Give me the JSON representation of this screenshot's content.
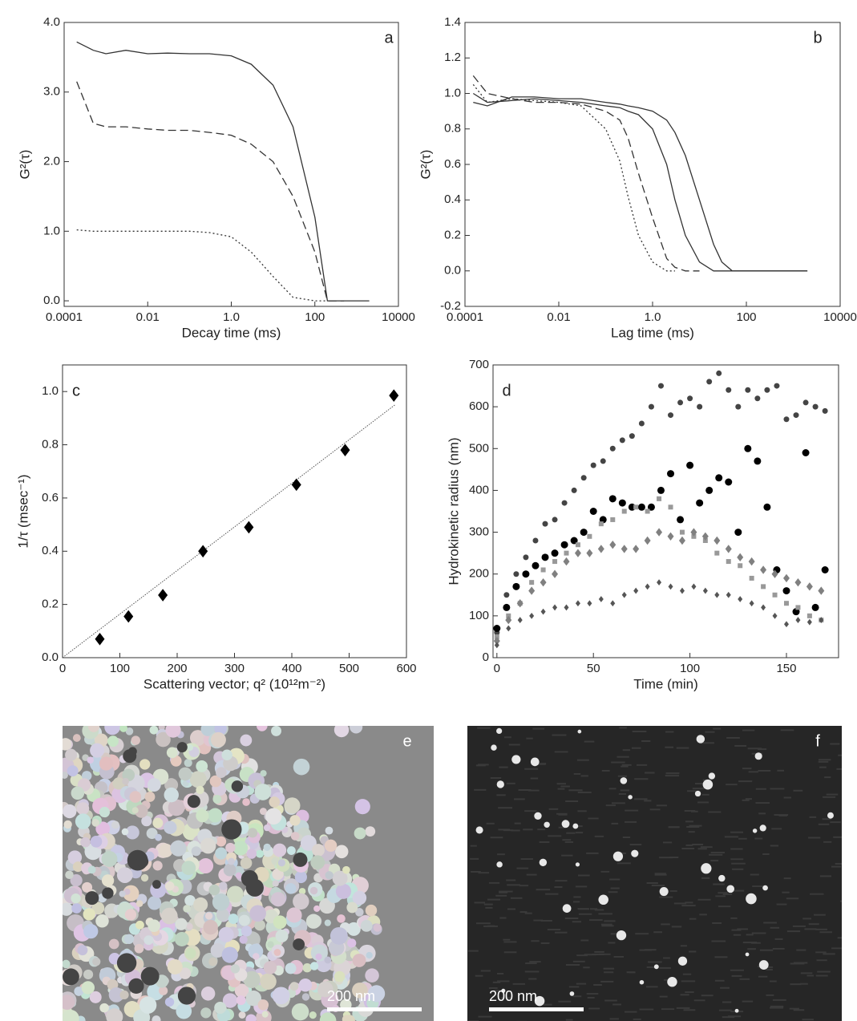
{
  "chart_data": [
    {
      "type": "line",
      "panel_label": "a",
      "x_label": "Decay time (ms)",
      "y_label": "G²(τ)",
      "xscale": "log",
      "xlim": [
        0.0001,
        10000
      ],
      "xticks": [
        0.0001,
        0.01,
        {
          "value": 1,
          "label": "1.0"
        },
        100,
        10000
      ],
      "ylim": [
        -0.08,
        4.0
      ],
      "yticks": [
        {
          "value": 0,
          "label": "0.0"
        },
        {
          "value": 1,
          "label": "1.0"
        },
        {
          "value": 2,
          "label": "2.0"
        },
        {
          "value": 3,
          "label": "3.0"
        },
        {
          "value": 4,
          "label": "4.0"
        }
      ],
      "x": [
        0.0002,
        0.0005,
        0.001,
        0.003,
        0.01,
        0.03,
        0.1,
        0.3,
        1,
        3,
        10,
        30,
        100,
        200,
        500,
        2000
      ],
      "series": [
        {
          "color": "#333333",
          "dash": "solid",
          "values": [
            3.72,
            3.6,
            3.55,
            3.6,
            3.55,
            3.56,
            3.55,
            3.55,
            3.52,
            3.4,
            3.1,
            2.5,
            1.2,
            0.0,
            0.0,
            0.0
          ]
        },
        {
          "color": "#333333",
          "dash": "dashed",
          "values": [
            3.15,
            2.55,
            2.5,
            2.5,
            2.47,
            2.45,
            2.45,
            2.42,
            2.38,
            2.25,
            2.0,
            1.5,
            0.7,
            0.0,
            0.0,
            null
          ]
        },
        {
          "color": "#333333",
          "dash": "dotted",
          "values": [
            1.02,
            1.0,
            1.0,
            1.0,
            1.0,
            1.0,
            1.0,
            0.98,
            0.92,
            0.7,
            0.35,
            0.05,
            0.0,
            0.0,
            null,
            null
          ]
        }
      ]
    },
    {
      "type": "line",
      "panel_label": "b",
      "x_label": "Lag time (ms)",
      "y_label": "G²(τ)",
      "xscale": "log",
      "xlim": [
        0.0001,
        10000
      ],
      "xticks": [
        0.0001,
        0.01,
        {
          "value": 1,
          "label": "1.0"
        },
        100,
        10000
      ],
      "ylim": [
        -0.2,
        1.4
      ],
      "yticks": [
        -0.2,
        {
          "value": 0,
          "label": "0.0"
        },
        0.2,
        0.4,
        0.6,
        0.8,
        {
          "value": 1,
          "label": "1.0"
        },
        1.2,
        1.4
      ],
      "x": [
        0.00015,
        0.0003,
        0.001,
        0.003,
        0.01,
        0.03,
        0.1,
        0.2,
        0.3,
        0.5,
        1,
        2,
        3,
        5,
        10,
        20,
        30,
        50,
        100,
        300,
        2000
      ],
      "series": [
        {
          "color": "#333333",
          "dash": "dotted",
          "values": [
            1.05,
            0.95,
            0.97,
            0.96,
            0.95,
            0.93,
            0.8,
            0.62,
            0.42,
            0.2,
            0.05,
            0.0,
            0.0,
            null,
            null,
            null,
            null,
            null,
            null,
            null,
            null
          ]
        },
        {
          "color": "#333333",
          "dash": "dashed",
          "values": [
            1.1,
            1.0,
            0.97,
            0.95,
            0.95,
            0.94,
            0.9,
            0.85,
            0.75,
            0.55,
            0.3,
            0.07,
            0.02,
            0.0,
            0.0,
            null,
            null,
            null,
            null,
            null,
            null
          ]
        },
        {
          "color": "#333333",
          "dash": "solid",
          "values": [
            1.0,
            0.95,
            0.96,
            0.97,
            0.96,
            0.95,
            0.93,
            0.92,
            0.9,
            0.88,
            0.8,
            0.6,
            0.4,
            0.2,
            0.05,
            0.0,
            0.0,
            0.0,
            0.0,
            0.0,
            0.0
          ]
        },
        {
          "color": "#333333",
          "dash": "solid",
          "values": [
            0.95,
            0.93,
            0.98,
            0.98,
            0.97,
            0.97,
            0.95,
            0.94,
            0.93,
            0.92,
            0.9,
            0.85,
            0.78,
            0.65,
            0.4,
            0.15,
            0.05,
            0.0,
            0.0,
            0.0,
            0.0
          ]
        }
      ]
    },
    {
      "type": "scatter",
      "panel_label": "c",
      "x_label": "Scattering vector; q² (10¹²m⁻²)",
      "y_label": "1/τ (msec⁻¹)",
      "xlim": [
        0,
        600
      ],
      "xticks": [
        0,
        100,
        200,
        300,
        400,
        500,
        600
      ],
      "ylim": [
        0,
        1.1
      ],
      "yticks": [
        {
          "value": 0,
          "label": "0.0"
        },
        0.2,
        0.4,
        0.6,
        0.8,
        {
          "value": 1,
          "label": "1.0"
        }
      ],
      "series": [
        {
          "color": "#000000",
          "marker": "diamond",
          "size": 6,
          "x": [
            65,
            115,
            175,
            245,
            325,
            408,
            493,
            578
          ],
          "values": [
            0.07,
            0.155,
            0.235,
            0.4,
            0.49,
            0.65,
            0.78,
            0.985
          ]
        }
      ],
      "fit": {
        "color": "#555555",
        "x": [
          0,
          580
        ],
        "values": [
          0,
          0.95
        ]
      }
    },
    {
      "type": "scatter",
      "panel_label": "d",
      "x_label": "Time (min)",
      "y_label": "Hydrokinetic radius (nm)",
      "xlim": [
        -2,
        177
      ],
      "xticks": [
        0,
        50,
        100,
        150
      ],
      "ylim": [
        0,
        700
      ],
      "yticks": [
        0,
        100,
        200,
        300,
        400,
        500,
        600,
        700
      ],
      "series": [
        {
          "color": "#444444",
          "marker": "circle",
          "size": 3.5,
          "x": [
            0,
            5,
            10,
            15,
            20,
            25,
            30,
            35,
            40,
            45,
            50,
            55,
            60,
            65,
            70,
            75,
            80,
            85,
            90,
            95,
            100,
            105,
            110,
            115,
            120,
            125,
            130,
            135,
            140,
            145,
            150,
            155,
            160,
            165,
            170
          ],
          "values": [
            60,
            150,
            200,
            240,
            280,
            320,
            330,
            370,
            400,
            430,
            460,
            470,
            500,
            520,
            530,
            560,
            600,
            650,
            580,
            610,
            620,
            600,
            660,
            680,
            640,
            600,
            640,
            620,
            640,
            650,
            570,
            580,
            610,
            600,
            590
          ]
        },
        {
          "color": "#000000",
          "marker": "circle",
          "size": 4.5,
          "x": [
            0,
            5,
            10,
            15,
            20,
            25,
            30,
            35,
            40,
            45,
            50,
            55,
            60,
            65,
            70,
            75,
            80,
            85,
            90,
            95,
            100,
            105,
            110,
            115,
            120,
            125,
            130,
            135,
            140,
            145,
            150,
            155,
            160,
            165,
            170
          ],
          "values": [
            70,
            120,
            170,
            200,
            220,
            240,
            250,
            270,
            280,
            300,
            350,
            330,
            380,
            370,
            360,
            360,
            360,
            400,
            440,
            330,
            460,
            370,
            400,
            430,
            420,
            300,
            500,
            470,
            360,
            210,
            160,
            110,
            490,
            120,
            210
          ]
        },
        {
          "color": "#999999",
          "marker": "square",
          "size": 3,
          "x": [
            0,
            6,
            12,
            18,
            24,
            30,
            36,
            42,
            48,
            54,
            60,
            66,
            72,
            78,
            84,
            90,
            96,
            102,
            108,
            114,
            120,
            126,
            132,
            138,
            144,
            150,
            156,
            162,
            168
          ],
          "values": [
            50,
            100,
            130,
            180,
            210,
            230,
            250,
            270,
            290,
            320,
            330,
            350,
            360,
            350,
            380,
            360,
            300,
            290,
            280,
            250,
            230,
            220,
            190,
            170,
            150,
            130,
            120,
            100,
            90
          ]
        },
        {
          "color": "#808080",
          "marker": "diamond",
          "size": 4,
          "x": [
            0,
            6,
            12,
            18,
            24,
            30,
            36,
            42,
            48,
            54,
            60,
            66,
            72,
            78,
            84,
            90,
            96,
            102,
            108,
            114,
            120,
            126,
            132,
            138,
            144,
            150,
            156,
            162,
            168
          ],
          "values": [
            40,
            90,
            130,
            160,
            180,
            200,
            230,
            250,
            250,
            260,
            270,
            260,
            260,
            280,
            300,
            290,
            280,
            300,
            290,
            280,
            260,
            240,
            230,
            210,
            200,
            190,
            180,
            170,
            160
          ]
        },
        {
          "color": "#555555",
          "marker": "diamond",
          "size": 3,
          "x": [
            0,
            6,
            12,
            18,
            24,
            30,
            36,
            42,
            48,
            54,
            60,
            66,
            72,
            78,
            84,
            90,
            96,
            102,
            108,
            114,
            120,
            126,
            132,
            138,
            144,
            150,
            156,
            162,
            168
          ],
          "values": [
            30,
            70,
            90,
            100,
            110,
            120,
            120,
            130,
            130,
            140,
            130,
            150,
            160,
            170,
            180,
            170,
            160,
            170,
            160,
            150,
            150,
            140,
            130,
            120,
            100,
            80,
            90,
            85,
            90
          ]
        }
      ]
    }
  ],
  "images": [
    {
      "panel_label": "e",
      "scale_bar": "200 nm"
    },
    {
      "panel_label": "f",
      "scale_bar": "200 nm"
    }
  ]
}
